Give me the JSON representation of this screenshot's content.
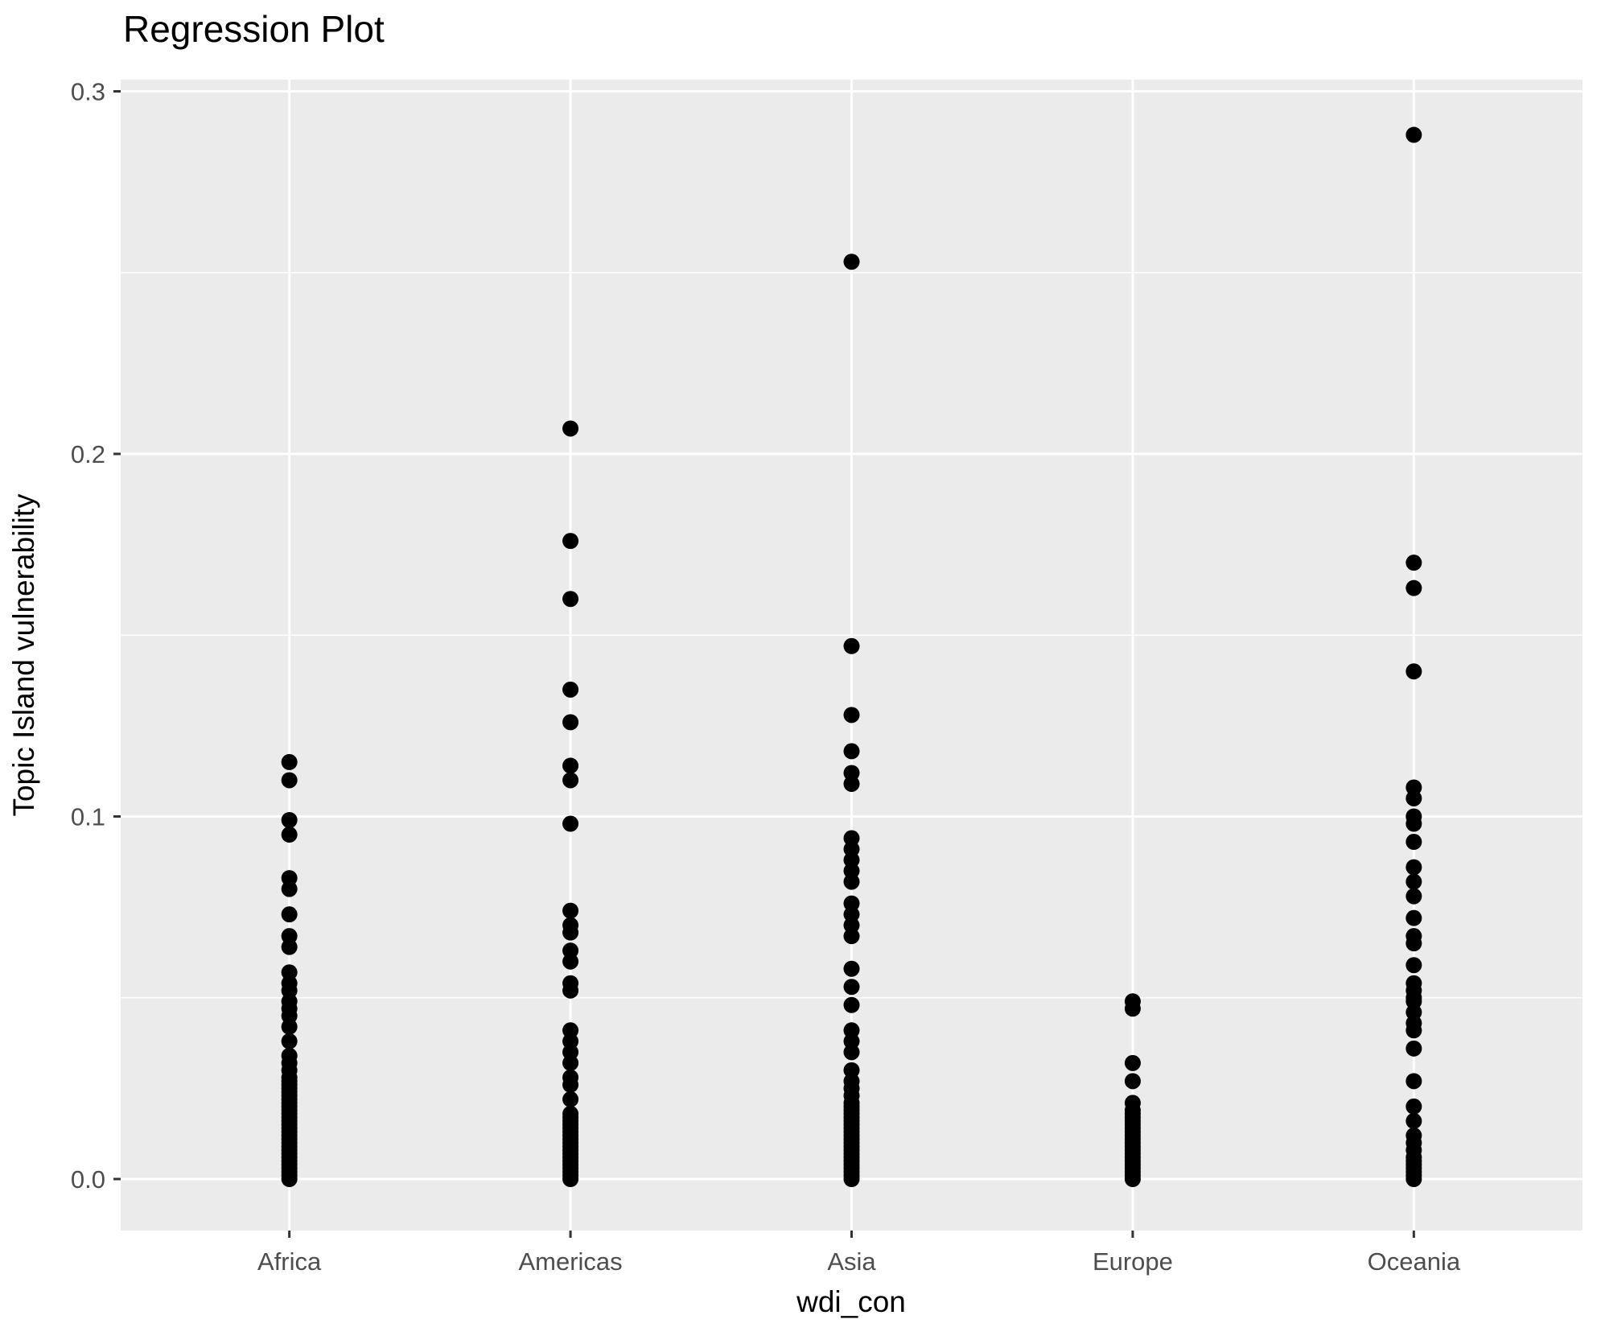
{
  "title": "Regression Plot",
  "chart_data": {
    "type": "scatter",
    "title": "Regression Plot",
    "xlabel": "wdi_con",
    "ylabel": "Topic Island vulnerability",
    "categories": [
      "Africa",
      "Americas",
      "Asia",
      "Europe",
      "Oceania"
    ],
    "y_tick_labels": [
      "0.0",
      "0.1",
      "0.2",
      "0.3"
    ],
    "y_tick_values": [
      0.0,
      0.1,
      0.2,
      0.3
    ],
    "y_minor_values": [
      0.05,
      0.15,
      0.25
    ],
    "ylim": [
      -0.014,
      0.303
    ],
    "legend_position": "none",
    "grid": "on",
    "panel_background": "#EBEBEB",
    "grid_color": "#FFFFFF",
    "point_color": "#000000",
    "tick_label_color": "#4D4D4D",
    "axis_title_color": "#000000",
    "tick_mark_color": "#333333",
    "series": [
      {
        "name": "Africa",
        "values": [
          0.115,
          0.11,
          0.099,
          0.095,
          0.083,
          0.08,
          0.073,
          0.067,
          0.064,
          0.057,
          0.054,
          0.052,
          0.049,
          0.047,
          0.045,
          0.042,
          0.038,
          0.034,
          0.032,
          0.03,
          0.028,
          0.027,
          0.026,
          0.025,
          0.024,
          0.023,
          0.022,
          0.021,
          0.02,
          0.019,
          0.018,
          0.017,
          0.016,
          0.015,
          0.014,
          0.013,
          0.012,
          0.011,
          0.01,
          0.009,
          0.008,
          0.007,
          0.006,
          0.005,
          0.004,
          0.003,
          0.002,
          0.001,
          0.0
        ]
      },
      {
        "name": "Americas",
        "values": [
          0.207,
          0.176,
          0.16,
          0.135,
          0.126,
          0.114,
          0.11,
          0.098,
          0.074,
          0.07,
          0.068,
          0.063,
          0.06,
          0.054,
          0.052,
          0.041,
          0.038,
          0.035,
          0.032,
          0.028,
          0.026,
          0.022,
          0.018,
          0.017,
          0.016,
          0.015,
          0.014,
          0.013,
          0.012,
          0.011,
          0.01,
          0.009,
          0.008,
          0.007,
          0.006,
          0.005,
          0.004,
          0.003,
          0.002,
          0.001,
          0.0
        ]
      },
      {
        "name": "Asia",
        "values": [
          0.253,
          0.147,
          0.128,
          0.118,
          0.112,
          0.109,
          0.094,
          0.091,
          0.088,
          0.085,
          0.082,
          0.076,
          0.073,
          0.07,
          0.067,
          0.058,
          0.053,
          0.048,
          0.041,
          0.038,
          0.035,
          0.03,
          0.027,
          0.025,
          0.023,
          0.021,
          0.02,
          0.019,
          0.018,
          0.017,
          0.016,
          0.015,
          0.014,
          0.013,
          0.012,
          0.011,
          0.01,
          0.009,
          0.008,
          0.007,
          0.006,
          0.005,
          0.004,
          0.003,
          0.002,
          0.001,
          0.0
        ]
      },
      {
        "name": "Europe",
        "values": [
          0.049,
          0.047,
          0.032,
          0.027,
          0.021,
          0.019,
          0.018,
          0.017,
          0.016,
          0.015,
          0.014,
          0.013,
          0.012,
          0.011,
          0.01,
          0.009,
          0.008,
          0.007,
          0.006,
          0.005,
          0.004,
          0.003,
          0.002,
          0.001,
          0.0
        ]
      },
      {
        "name": "Oceania",
        "values": [
          0.288,
          0.17,
          0.163,
          0.14,
          0.108,
          0.105,
          0.1,
          0.098,
          0.093,
          0.086,
          0.082,
          0.078,
          0.072,
          0.067,
          0.065,
          0.059,
          0.054,
          0.052,
          0.05,
          0.049,
          0.046,
          0.043,
          0.041,
          0.036,
          0.027,
          0.02,
          0.016,
          0.012,
          0.01,
          0.008,
          0.006,
          0.005,
          0.004,
          0.003,
          0.002,
          0.001,
          0.0
        ]
      }
    ]
  }
}
